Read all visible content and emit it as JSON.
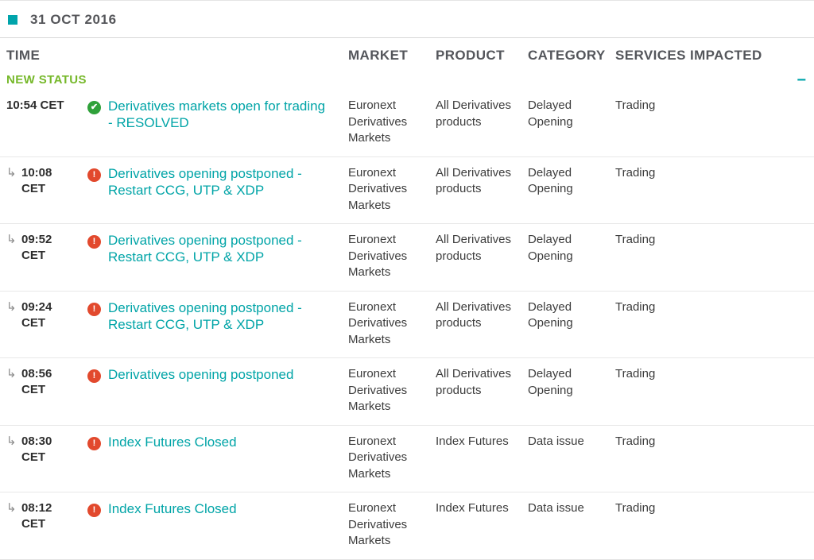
{
  "page": {
    "date": "31 OCT 2016",
    "collapse_glyph": "−"
  },
  "colors": {
    "accent_teal": "#00a4a7",
    "group_green": "#76b82a",
    "resolved_green": "#2fa13a",
    "issue_red": "#e2492d"
  },
  "table": {
    "headers": [
      "TIME",
      "MARKET",
      "PRODUCT",
      "CATEGORY",
      "SERVICES IMPACTED"
    ],
    "status_group_label": "NEW STATUS",
    "rows": [
      {
        "time": "10:54 CET",
        "sub": false,
        "status": "resolved",
        "title": "Derivatives markets open for trading - RESOLVED",
        "market": "Euronext Derivatives Markets",
        "product": "All Derivatives products",
        "category": "Delayed Opening",
        "services": "Trading"
      },
      {
        "time": "10:08 CET",
        "sub": true,
        "status": "issue",
        "title": "Derivatives opening postponed - Restart CCG, UTP & XDP",
        "market": "Euronext Derivatives Markets",
        "product": "All Derivatives products",
        "category": "Delayed Opening",
        "services": "Trading"
      },
      {
        "time": "09:52 CET",
        "sub": true,
        "status": "issue",
        "title": "Derivatives opening postponed - Restart CCG, UTP & XDP",
        "market": "Euronext Derivatives Markets",
        "product": "All Derivatives products",
        "category": "Delayed Opening",
        "services": "Trading"
      },
      {
        "time": "09:24 CET",
        "sub": true,
        "status": "issue",
        "title": "Derivatives opening postponed - Restart CCG, UTP & XDP",
        "market": "Euronext Derivatives Markets",
        "product": "All Derivatives products",
        "category": "Delayed Opening",
        "services": "Trading"
      },
      {
        "time": "08:56 CET",
        "sub": true,
        "status": "issue",
        "title": "Derivatives opening postponed",
        "market": "Euronext Derivatives Markets",
        "product": "All Derivatives products",
        "category": "Delayed Opening",
        "services": "Trading"
      },
      {
        "time": "08:30 CET",
        "sub": true,
        "status": "issue",
        "title": "Index Futures Closed",
        "market": "Euronext Derivatives Markets",
        "product": "Index Futures",
        "category": "Data issue",
        "services": "Trading"
      },
      {
        "time": "08:12 CET",
        "sub": true,
        "status": "issue",
        "title": "Index Futures Closed",
        "market": "Euronext Derivatives Markets",
        "product": "Index Futures",
        "category": "Data issue",
        "services": "Trading"
      }
    ]
  }
}
